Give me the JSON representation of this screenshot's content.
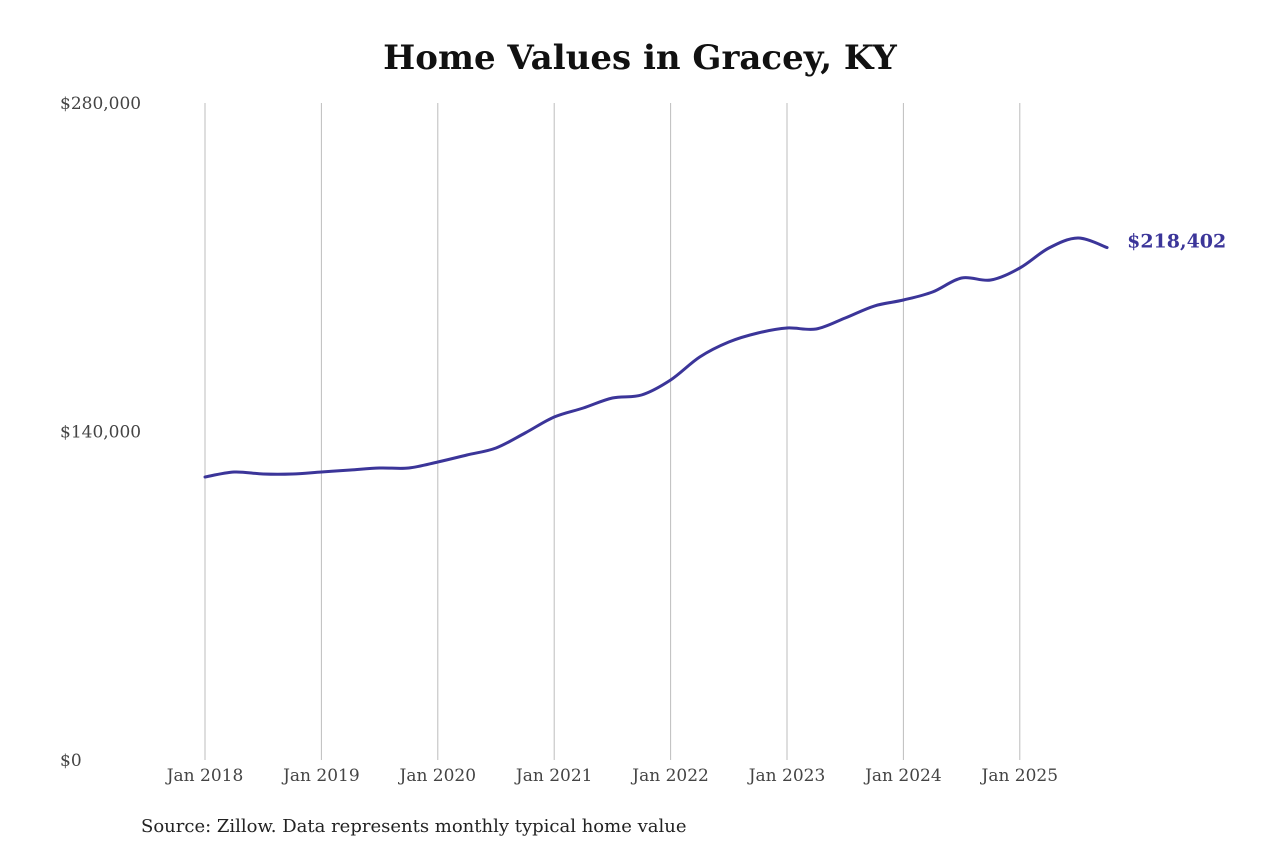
{
  "chart_data": {
    "type": "line",
    "title": "Home Values in Gracey, KY",
    "xlabel": "",
    "ylabel": "",
    "ylim": [
      0,
      280000
    ],
    "xlim": [
      2018.0,
      2025.75
    ],
    "y_ticks": [
      {
        "value": 0,
        "label": "$0"
      },
      {
        "value": 140000,
        "label": "$140,000"
      },
      {
        "value": 280000,
        "label": "$280,000"
      }
    ],
    "x_ticks": [
      {
        "value": 2018,
        "label": "Jan 2018"
      },
      {
        "value": 2019,
        "label": "Jan 2019"
      },
      {
        "value": 2020,
        "label": "Jan 2020"
      },
      {
        "value": 2021,
        "label": "Jan 2021"
      },
      {
        "value": 2022,
        "label": "Jan 2022"
      },
      {
        "value": 2023,
        "label": "Jan 2023"
      },
      {
        "value": 2024,
        "label": "Jan 2024"
      },
      {
        "value": 2025,
        "label": "Jan 2025"
      }
    ],
    "grid": "vertical",
    "series": [
      {
        "name": "Typical home value",
        "color": "#3b3599",
        "x": [
          2018.0,
          2018.25,
          2018.5,
          2018.75,
          2019.0,
          2019.25,
          2019.5,
          2019.75,
          2020.0,
          2020.25,
          2020.5,
          2020.75,
          2021.0,
          2021.25,
          2021.5,
          2021.75,
          2022.0,
          2022.25,
          2022.5,
          2022.75,
          2023.0,
          2023.25,
          2023.5,
          2023.75,
          2024.0,
          2024.25,
          2024.5,
          2024.75,
          2025.0,
          2025.25,
          2025.5,
          2025.75
        ],
        "values": [
          120610,
          122740,
          121890,
          121890,
          122740,
          123590,
          124445,
          124445,
          127000,
          129985,
          132970,
          139360,
          146180,
          150015,
          154280,
          155555,
          161950,
          171750,
          178140,
          181980,
          184110,
          183680,
          188370,
          193480,
          196040,
          199450,
          205420,
          204560,
          209680,
          218200,
          222460,
          218402
        ]
      }
    ],
    "end_label": "$218,402",
    "source": "Source: Zillow. Data represents monthly typical home value"
  }
}
